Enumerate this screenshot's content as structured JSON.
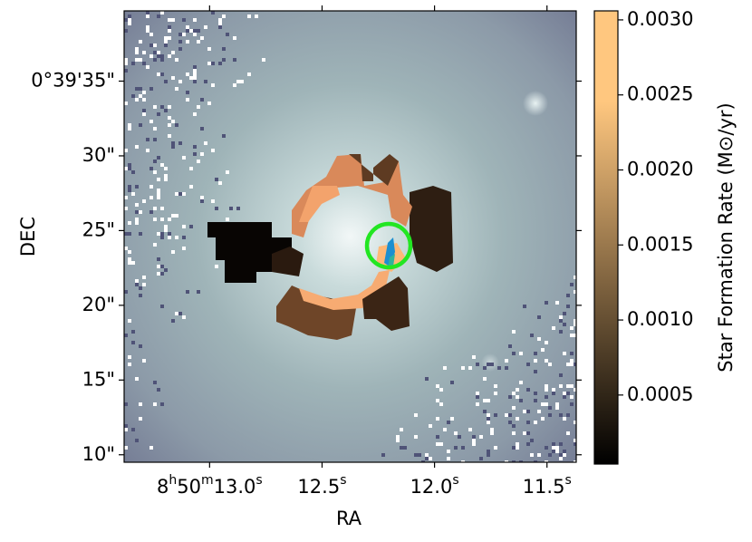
{
  "chart_data": {
    "type": "image",
    "xlabel": "RA",
    "ylabel": "DEC",
    "colorbar_label": "Star Formation Rate (M⊙/yr)",
    "xlim": [
      13.38,
      11.37
    ],
    "xticks": [
      {
        "value": 13.0,
        "label": "8h50m13.0s"
      },
      {
        "value": 12.5,
        "label": "12.5s"
      },
      {
        "value": 12.0,
        "label": "12.0s"
      },
      {
        "value": 11.5,
        "label": "11.5s"
      }
    ],
    "ylim": [
      9.5,
      39.7
    ],
    "yticks": [
      {
        "value": 35,
        "label": "0°39'35\""
      },
      {
        "value": 30,
        "label": "30\""
      },
      {
        "value": 25,
        "label": "25\""
      },
      {
        "value": 20,
        "label": "20\""
      },
      {
        "value": 15,
        "label": "15\""
      },
      {
        "value": 10,
        "label": "10\""
      }
    ],
    "clim": [
      4e-05,
      0.00306
    ],
    "cticks": [
      {
        "value": 0.003,
        "label": "0.0030"
      },
      0.0025,
      {
        "value": 0.002,
        "label": "0.0020"
      },
      0.0015,
      {
        "value": 0.001,
        "label": "0.0010"
      },
      0.0005
    ],
    "colormap": [
      "#000000",
      "#ffc77f"
    ]
  }
}
